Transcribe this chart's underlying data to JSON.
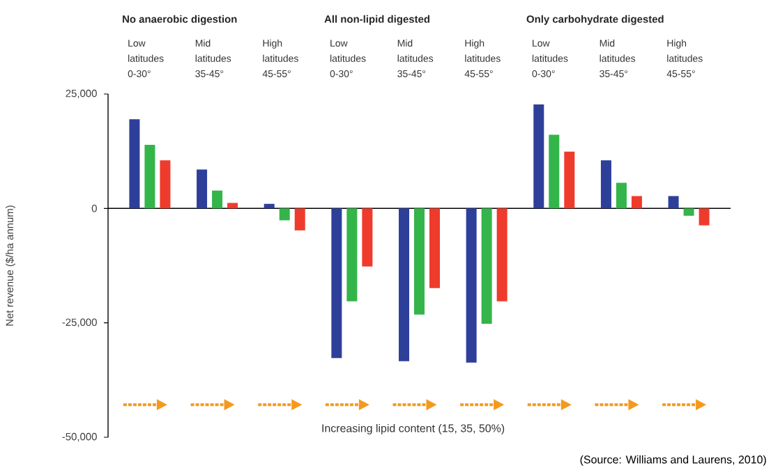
{
  "chart_data": {
    "type": "bar",
    "categories": [
      "Low latitudes 0-30°",
      "Mid latitudes 35-45°",
      "High latitudes 45-55°",
      "Low latitudes 0-30°",
      "Mid latitudes 35-45°",
      "High latitudes 45-55°",
      "Low latitudes 0-30°",
      "Mid latitudes 35-45°",
      "High latitudes 45-55°"
    ],
    "series": [
      {
        "color": "#2e3f9a",
        "values": [
          19500,
          8500,
          1000,
          -32700,
          -33400,
          -33700,
          22700,
          10500,
          2700
        ]
      },
      {
        "color": "#33b54a",
        "values": [
          13900,
          3900,
          -2600,
          -20300,
          -23200,
          -25200,
          16100,
          5600,
          -1600
        ]
      },
      {
        "color": "#ef3b2c",
        "values": [
          10500,
          1200,
          -4800,
          -12700,
          -17400,
          -20300,
          12400,
          2700,
          -3700
        ]
      }
    ],
    "ylabel": "Net revenue ($/ha annum)",
    "xlabel": "Increasing lipid content (15, 35, 50%)",
    "ylim": [
      -50000,
      25000
    ],
    "yticks": [
      {
        "value": 25000,
        "label": "25,000"
      },
      0,
      {
        "value": -25000,
        "label": "-25,000"
      },
      {
        "value": -50000,
        "label": "-50,000"
      }
    ],
    "annotations": [
      "No anaerobic digestion",
      "All non-lipid digested",
      "Only carbohydrate digested",
      "(Source: Williams and Laurens, 2010)"
    ]
  }
}
